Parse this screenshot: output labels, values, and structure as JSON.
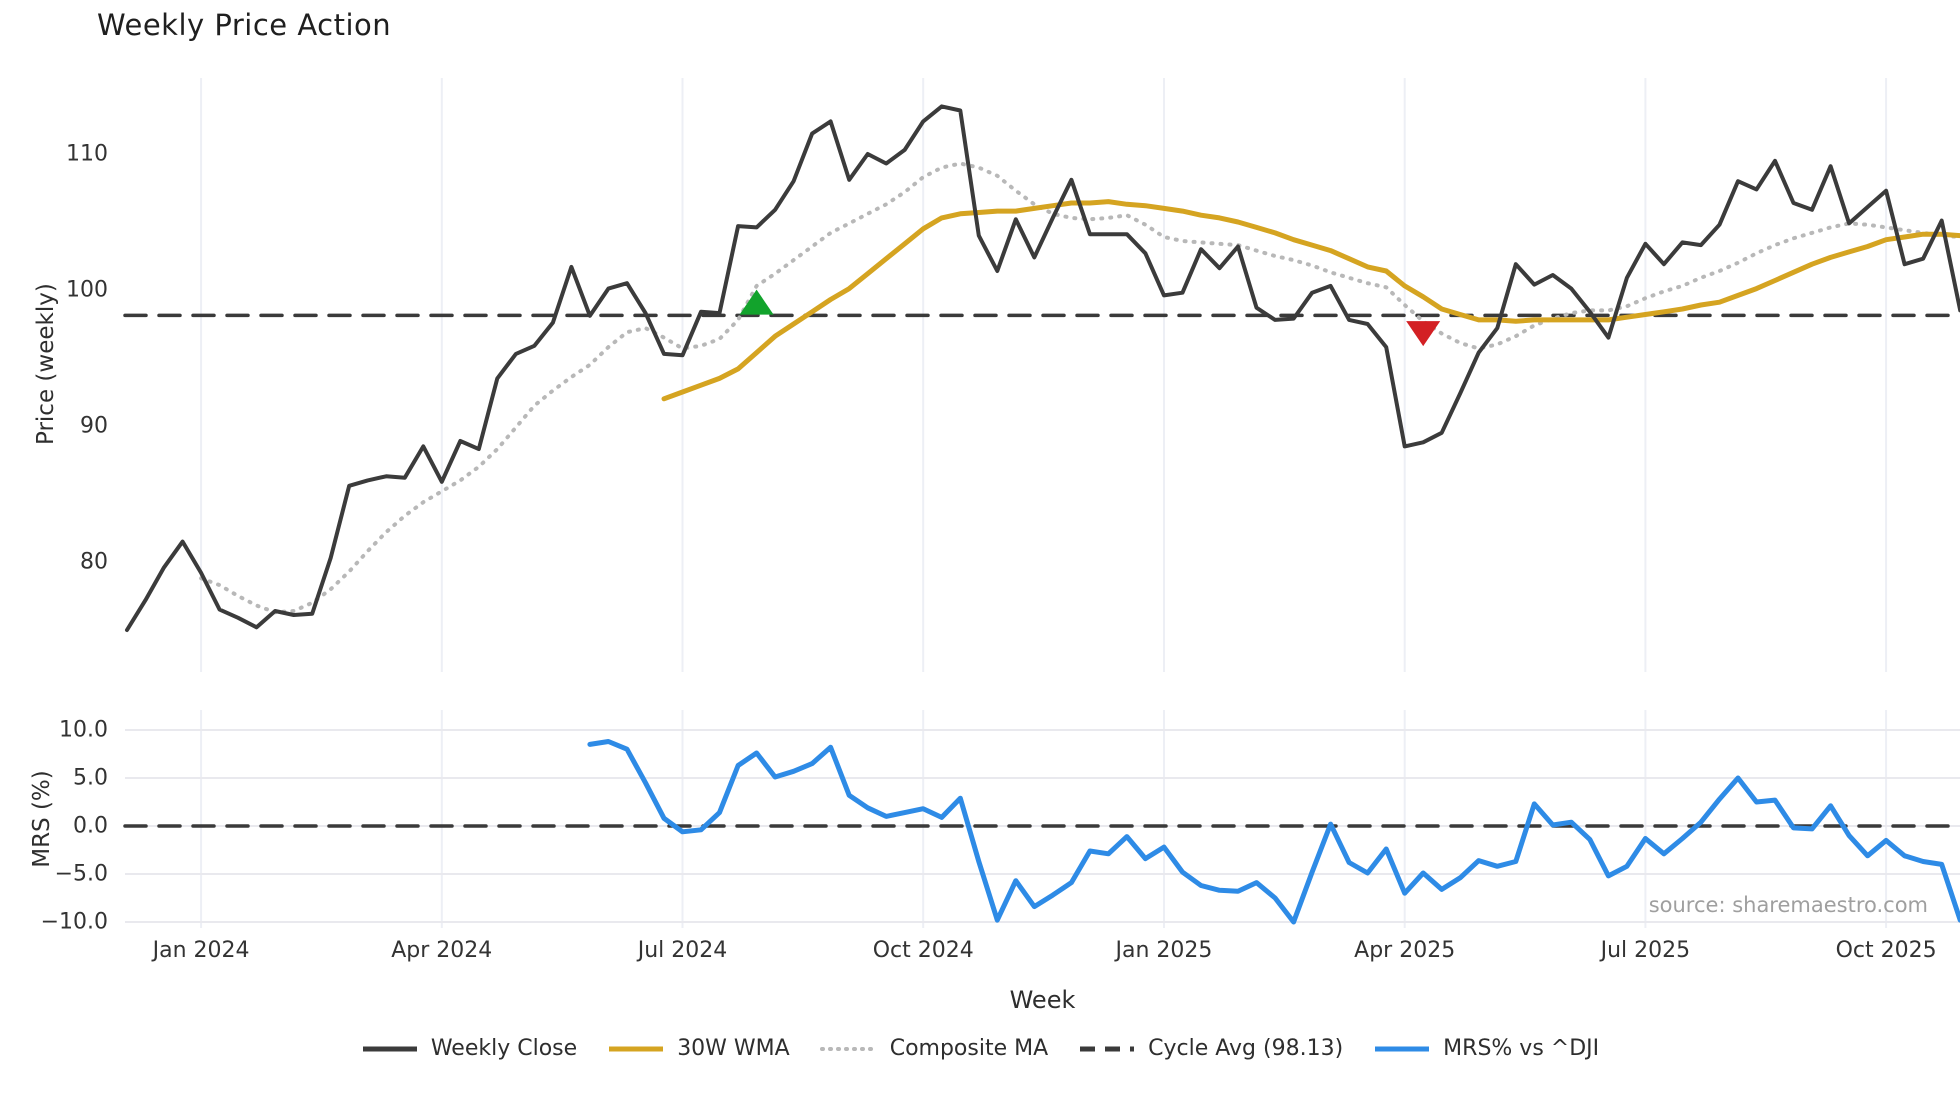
{
  "title": "Weekly Price Action",
  "source_note": "source: sharemaestro.com",
  "colors": {
    "close_line": "#3b3b3b",
    "wma_line": "#d5a421",
    "composite_line": "#b8b8b8",
    "cycle_avg_line": "#3a3a3a",
    "mrs_line": "#2e8be6",
    "buy_marker": "#12a32c",
    "sell_marker": "#d32024",
    "grid_vertical": "#edeff5",
    "grid_horizontal": "#e9e9ee",
    "source_text": "#9f9f9f"
  },
  "legend": {
    "items": [
      {
        "label": "Weekly Close",
        "style": "solid",
        "color": "#3b3b3b"
      },
      {
        "label": "30W WMA",
        "style": "solid",
        "color": "#d5a421"
      },
      {
        "label": "Composite MA",
        "style": "dotted",
        "color": "#b8b8b8"
      },
      {
        "label": "Cycle Avg (98.13)",
        "style": "dashed",
        "color": "#3a3a3a"
      },
      {
        "label": "MRS% vs ^DJI",
        "style": "solid",
        "color": "#2e8be6"
      }
    ]
  },
  "chart_data": {
    "type": "line",
    "title": "Weekly Price Action",
    "xlabel": "Week",
    "x_is_weekly_index": true,
    "total_weeks": 100,
    "x_ticks": [
      {
        "week": 4,
        "label": "Jan 2024"
      },
      {
        "week": 17,
        "label": "Apr 2024"
      },
      {
        "week": 30,
        "label": "Jul 2024"
      },
      {
        "week": 43,
        "label": "Oct 2024"
      },
      {
        "week": 56,
        "label": "Jan 2025"
      },
      {
        "week": 69,
        "label": "Apr 2025"
      },
      {
        "week": 82,
        "label": "Jul 2025"
      },
      {
        "week": 95,
        "label": "Oct 2025"
      }
    ],
    "panels": [
      {
        "id": "price",
        "ylabel": "Price (weekly)",
        "yticks": [
          80,
          90,
          100,
          110
        ],
        "ytick_labels": [
          "80",
          "90",
          "100",
          "110"
        ],
        "ylim": [
          71.5,
          115.6
        ],
        "grid": "vertical-only",
        "series": [
          {
            "name": "Weekly Close",
            "style": "solid",
            "color": "#3b3b3b",
            "width": 4,
            "start_week": 0,
            "values": [
              75.0,
              77.2,
              79.6,
              81.5,
              79.2,
              76.5,
              75.9,
              75.2,
              76.4,
              76.1,
              76.2,
              80.3,
              85.6,
              86.0,
              86.3,
              86.2,
              88.5,
              85.9,
              88.9,
              88.3,
              93.5,
              95.3,
              95.9,
              97.6,
              101.7,
              98.1,
              100.1,
              100.5,
              98.3,
              95.3,
              95.2,
              98.4,
              98.3,
              104.7,
              104.6,
              105.9,
              108.0,
              111.5,
              112.4,
              108.1,
              110.0,
              109.3,
              110.3,
              112.4,
              113.5,
              113.2,
              104.0,
              101.4,
              105.2,
              102.4,
              105.3,
              108.1,
              104.1,
              104.1,
              104.1,
              102.7,
              99.6,
              99.8,
              103.0,
              101.6,
              103.2,
              98.7,
              97.8,
              97.9,
              99.8,
              100.3,
              97.8,
              97.5,
              95.8,
              88.5,
              88.8,
              89.5,
              92.4,
              95.4,
              97.2,
              101.9,
              100.4,
              101.1,
              100.1,
              98.4,
              96.5,
              100.9,
              103.4,
              101.9,
              103.5,
              103.3,
              104.8,
              108.0,
              107.4,
              109.5,
              106.4,
              105.9,
              109.1,
              104.9,
              106.1,
              107.3,
              101.9,
              102.3,
              105.1,
              98.5
            ]
          },
          {
            "name": "30W WMA",
            "style": "solid",
            "color": "#d5a421",
            "width": 5,
            "start_week": 29,
            "values": [
              92.0,
              92.5,
              93.0,
              93.5,
              94.2,
              95.4,
              96.6,
              97.5,
              98.4,
              99.3,
              100.1,
              101.2,
              102.3,
              103.4,
              104.5,
              105.3,
              105.6,
              105.7,
              105.8,
              105.8,
              106.0,
              106.2,
              106.4,
              106.4,
              106.5,
              106.3,
              106.2,
              106.0,
              105.8,
              105.5,
              105.3,
              105.0,
              104.6,
              104.2,
              103.7,
              103.3,
              102.9,
              102.3,
              101.7,
              101.4,
              100.3,
              99.5,
              98.6,
              98.2,
              97.8,
              97.8,
              97.7,
              97.8,
              97.8,
              97.8,
              97.8,
              97.8,
              98.0,
              98.2,
              98.4,
              98.6,
              98.9,
              99.1,
              99.6,
              100.1,
              100.7,
              101.3,
              101.9,
              102.4,
              102.8,
              103.2,
              103.7,
              103.9,
              104.1,
              104.1,
              104.0
            ]
          },
          {
            "name": "Composite MA",
            "style": "dotted",
            "color": "#b8b8b8",
            "width": 4,
            "start_week": 4,
            "values": [
              78.8,
              78.3,
              77.5,
              76.8,
              76.3,
              76.4,
              77.0,
              78.0,
              79.3,
              80.8,
              82.2,
              83.4,
              84.4,
              85.2,
              86.0,
              87.0,
              88.3,
              89.9,
              91.5,
              92.6,
              93.6,
              94.5,
              95.8,
              96.9,
              97.2,
              96.5,
              95.7,
              95.9,
              96.4,
              97.8,
              100.3,
              101.2,
              102.2,
              103.2,
              104.2,
              104.9,
              105.6,
              106.3,
              107.2,
              108.3,
              109.0,
              109.3,
              109.0,
              108.4,
              107.3,
              106.3,
              105.6,
              105.3,
              105.2,
              105.3,
              105.5,
              104.8,
              103.9,
              103.6,
              103.5,
              103.4,
              103.3,
              102.9,
              102.5,
              102.2,
              101.8,
              101.3,
              100.9,
              100.5,
              100.2,
              98.9,
              97.7,
              96.8,
              96.1,
              95.7,
              96.0,
              96.6,
              97.4,
              97.9,
              98.3,
              98.5,
              98.5,
              98.8,
              99.4,
              99.9,
              100.3,
              100.9,
              101.4,
              102.0,
              102.7,
              103.3,
              103.8,
              104.2,
              104.6,
              104.9,
              104.8,
              104.6,
              104.4,
              104.2,
              104.0,
              103.9
            ]
          },
          {
            "name": "Cycle Avg",
            "style": "dashed",
            "color": "#3a3a3a",
            "width": 3.5,
            "constant": 98.13
          }
        ],
        "markers": [
          {
            "shape": "triangle-up",
            "meaning": "buy-signal",
            "color": "#12a32c",
            "week": 34,
            "value": 99.0
          },
          {
            "shape": "triangle-down",
            "meaning": "sell-signal",
            "color": "#d32024",
            "week": 70,
            "value": 96.9
          }
        ]
      },
      {
        "id": "mrs",
        "ylabel": "MRS (%)",
        "yticks": [
          10,
          5,
          0,
          -5,
          -10
        ],
        "ytick_labels": [
          "10.0",
          "5.0",
          "0.0",
          "−5.0",
          "−10.0"
        ],
        "ylim": [
          -12.1,
          12.1
        ],
        "grid": "both",
        "zero_dashed": true,
        "series": [
          {
            "name": "MRS% vs ^DJI",
            "style": "solid",
            "color": "#2e8be6",
            "width": 5,
            "start_week": 25,
            "values": [
              8.5,
              8.8,
              8.0,
              4.5,
              0.8,
              -0.6,
              -0.4,
              1.4,
              6.3,
              7.6,
              5.1,
              5.7,
              6.5,
              8.2,
              3.2,
              1.9,
              1.0,
              1.4,
              1.8,
              0.9,
              2.9,
              -3.7,
              -9.8,
              -5.7,
              -8.4,
              -7.2,
              -5.9,
              -2.6,
              -2.9,
              -1.1,
              -3.4,
              -2.2,
              -4.8,
              -6.2,
              -6.7,
              -6.8,
              -5.9,
              -7.5,
              -10.0,
              -4.8,
              0.2,
              -3.8,
              -4.9,
              -2.4,
              -7.0,
              -4.9,
              -6.6,
              -5.4,
              -3.6,
              -4.2,
              -3.7,
              2.3,
              0.1,
              0.4,
              -1.4,
              -5.2,
              -4.2,
              -1.3,
              -2.9,
              -1.3,
              0.4,
              2.8,
              5.0,
              2.5,
              2.7,
              -0.2,
              -0.3,
              2.1,
              -1.0,
              -3.1,
              -1.5,
              -3.1,
              -3.7,
              -4.0,
              -9.8
            ]
          }
        ]
      }
    ]
  }
}
